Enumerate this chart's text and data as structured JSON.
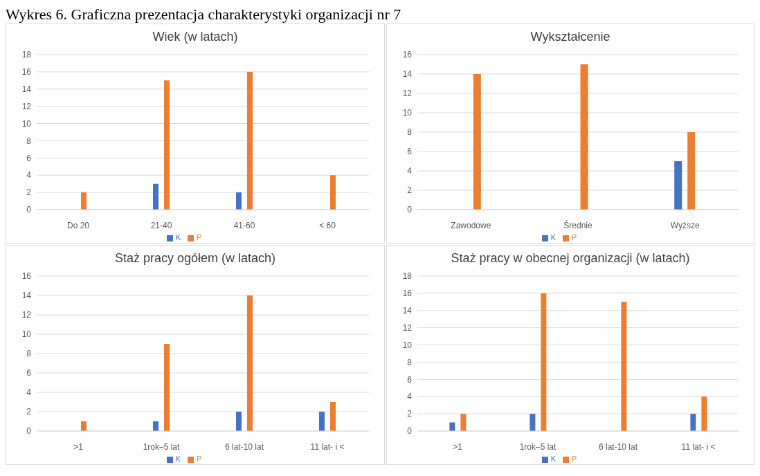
{
  "chart_data": [
    {
      "type": "bar",
      "title": "Wiek (w latach)",
      "annotations": [
        "Wykres 6. Graficzna prezentacja charakterystyki organizacji nr 7"
      ],
      "categories": [
        "Do 20",
        "21-40",
        "41-60",
        "< 60"
      ],
      "series": [
        {
          "name": "K",
          "color": "#4472c4",
          "values": [
            0,
            3,
            2,
            0
          ]
        },
        {
          "name": "P",
          "color": "#ed7d31",
          "values": [
            2,
            15,
            16,
            4
          ]
        }
      ],
      "ylim": [
        0,
        18
      ],
      "yticks": [
        0,
        2,
        4,
        6,
        8,
        10,
        12,
        14,
        16,
        18
      ],
      "grid": "y",
      "legend": "bottom"
    },
    {
      "type": "bar",
      "title": "Wykształcenie",
      "categories": [
        "Zawodowe",
        "Średnie",
        "Wyższe"
      ],
      "series": [
        {
          "name": "K",
          "color": "#4472c4",
          "values": [
            0,
            0,
            5
          ]
        },
        {
          "name": "P",
          "color": "#ed7d31",
          "values": [
            14,
            15,
            8
          ]
        }
      ],
      "ylim": [
        0,
        16
      ],
      "yticks": [
        0,
        2,
        4,
        6,
        8,
        10,
        12,
        14,
        16
      ],
      "grid": "y",
      "legend": "bottom"
    },
    {
      "type": "bar",
      "title": "Staż pracy ogółem (w latach)",
      "categories": [
        ">1",
        "1rok–5 lat",
        "6 lat-10 lat",
        "11 lat- i <"
      ],
      "series": [
        {
          "name": "K",
          "color": "#4472c4",
          "values": [
            0,
            1,
            2,
            2
          ]
        },
        {
          "name": "P",
          "color": "#ed7d31",
          "values": [
            1,
            9,
            14,
            3
          ]
        }
      ],
      "ylim": [
        0,
        16
      ],
      "yticks": [
        0,
        2,
        4,
        6,
        8,
        10,
        12,
        14,
        16
      ],
      "grid": "y",
      "legend": "bottom"
    },
    {
      "type": "bar",
      "title": "Staż pracy w obecnej organizacji (w latach)",
      "categories": [
        ">1",
        "1rok–5 lat",
        "6 lat-10 lat",
        "11 lat- i <"
      ],
      "series": [
        {
          "name": "K",
          "color": "#4472c4",
          "values": [
            1,
            2,
            0,
            2
          ]
        },
        {
          "name": "P",
          "color": "#ed7d31",
          "values": [
            2,
            16,
            15,
            4
          ]
        }
      ],
      "ylim": [
        0,
        18
      ],
      "yticks": [
        0,
        2,
        4,
        6,
        8,
        10,
        12,
        14,
        16,
        18
      ],
      "grid": "y",
      "legend": "bottom"
    }
  ]
}
